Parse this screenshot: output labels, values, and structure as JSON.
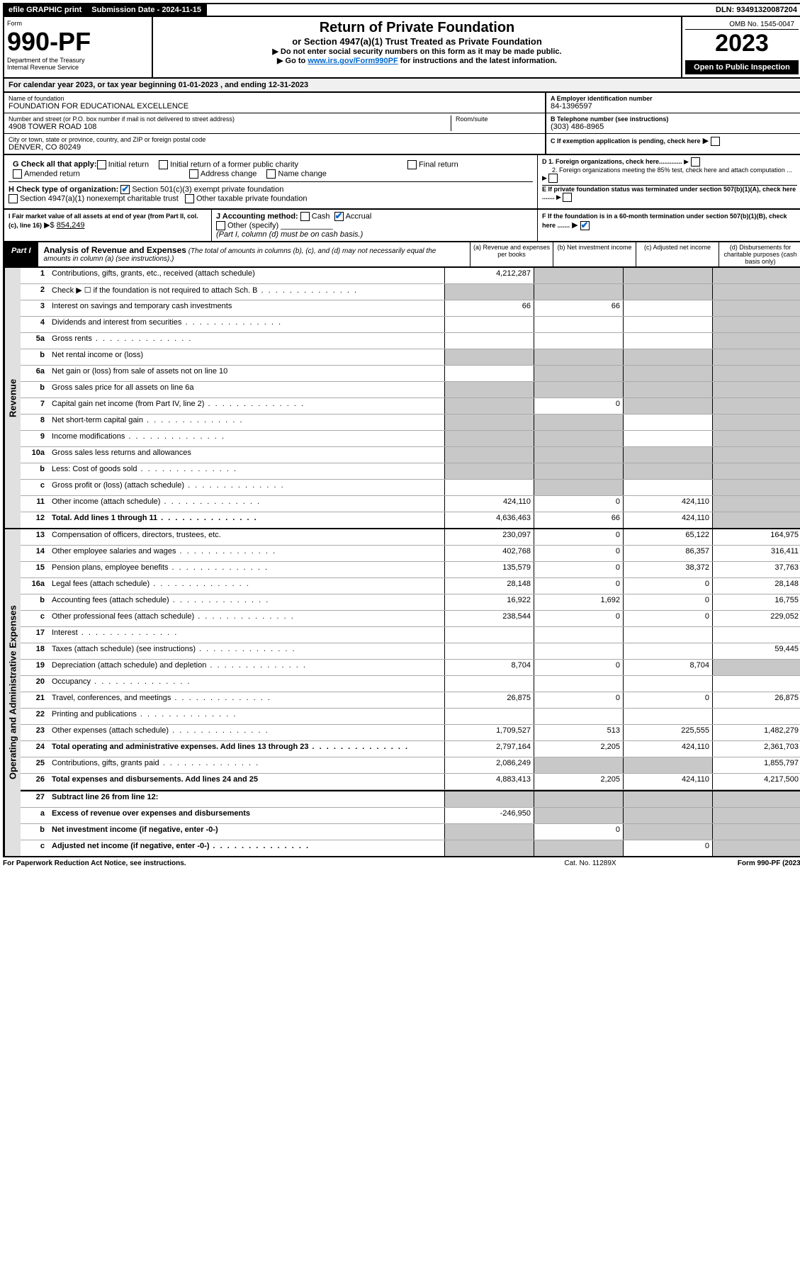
{
  "topbar": {
    "efile": "efile GRAPHIC print",
    "subdate_label": "Submission Date - 2024-11-15",
    "dln": "DLN: 93491320087204"
  },
  "omb": "OMB No. 1545-0047",
  "form_label": "Form",
  "form_no": "990-PF",
  "dept": "Department of the Treasury",
  "irs": "Internal Revenue Service",
  "title1": "Return of Private Foundation",
  "title2": "or Section 4947(a)(1) Trust Treated as Private Foundation",
  "instr1": "▶ Do not enter social security numbers on this form as it may be made public.",
  "instr2_pre": "▶ Go to ",
  "instr2_link": "www.irs.gov/Form990PF",
  "instr2_post": " for instructions and the latest information.",
  "year": "2023",
  "open": "Open to Public Inspection",
  "calendar": "For calendar year 2023, or tax year beginning 01-01-2023                          , and ending 12-31-2023",
  "name_label": "Name of foundation",
  "name": "FOUNDATION FOR EDUCATIONAL EXCELLENCE",
  "addr_label": "Number and street (or P.O. box number if mail is not delivered to street address)",
  "addr": "4908 TOWER ROAD 108",
  "room_label": "Room/suite",
  "city_label": "City or town, state or province, country, and ZIP or foreign postal code",
  "city": "DENVER, CO  80249",
  "A_label": "A Employer identification number",
  "A_val": "84-1396597",
  "B_label": "B Telephone number (see instructions)",
  "B_val": "(303) 486-8965",
  "C_label": "C If exemption application is pending, check here",
  "D1": "D 1. Foreign organizations, check here.............",
  "D2": "2. Foreign organizations meeting the 85% test, check here and attach computation ...",
  "E": "E  If private foundation status was terminated under section 507(b)(1)(A), check here .......",
  "F": "F  If the foundation is in a 60-month termination under section 507(b)(1)(B), check here .......",
  "G_label": "G Check all that apply:",
  "G_opts": [
    "Initial return",
    "Initial return of a former public charity",
    "Final return",
    "Amended return",
    "Address change",
    "Name change"
  ],
  "H_label": "H Check type of organization:",
  "H_501c3": "Section 501(c)(3) exempt private foundation",
  "H_4947": "Section 4947(a)(1) nonexempt charitable trust",
  "H_other": "Other taxable private foundation",
  "I_label": "I Fair market value of all assets at end of year (from Part II, col. (c), line 16)",
  "I_val": "854,249",
  "J_label": "J Accounting method:",
  "J_cash": "Cash",
  "J_accrual": "Accrual",
  "J_other": "Other (specify)",
  "J_note": "(Part I, column (d) must be on cash basis.)",
  "part1": "Part I",
  "part1_title": "Analysis of Revenue and Expenses",
  "part1_note": "(The total of amounts in columns (b), (c), and (d) may not necessarily equal the amounts in column (a) (see instructions).)",
  "col_a": "(a)   Revenue and expenses per books",
  "col_b": "(b)   Net investment income",
  "col_c": "(c)   Adjusted net income",
  "col_d": "(d)   Disbursements for charitable purposes (cash basis only)",
  "sidebar_rev": "Revenue",
  "sidebar_exp": "Operating and Administrative Expenses",
  "rows_rev": [
    {
      "n": "1",
      "d": "Contributions, gifts, grants, etc., received (attach schedule)",
      "a": "4,212,287",
      "ag": false,
      "bg": true,
      "cg": true,
      "dg": true
    },
    {
      "n": "2",
      "d": "Check ▶ ☐ if the foundation is not required to attach Sch. B",
      "dots": true,
      "ag": true,
      "bg": true,
      "cg": true,
      "dg": true
    },
    {
      "n": "3",
      "d": "Interest on savings and temporary cash investments",
      "a": "66",
      "b": "66",
      "dg": true
    },
    {
      "n": "4",
      "d": "Dividends and interest from securities",
      "dots": true,
      "dg": true
    },
    {
      "n": "5a",
      "d": "Gross rents",
      "dots": true,
      "dg": true
    },
    {
      "n": "b",
      "d": "Net rental income or (loss)",
      "box": true,
      "ag": true,
      "bg": true,
      "cg": true,
      "dg": true
    },
    {
      "n": "6a",
      "d": "Net gain or (loss) from sale of assets not on line 10",
      "bg": true,
      "cg": true,
      "dg": true
    },
    {
      "n": "b",
      "d": "Gross sales price for all assets on line 6a",
      "box": true,
      "ag": true,
      "bg": true,
      "cg": true,
      "dg": true
    },
    {
      "n": "7",
      "d": "Capital gain net income (from Part IV, line 2)",
      "dots": true,
      "ag": true,
      "b": "0",
      "cg": true,
      "dg": true
    },
    {
      "n": "8",
      "d": "Net short-term capital gain",
      "dots": true,
      "ag": true,
      "bg": true,
      "dg": true
    },
    {
      "n": "9",
      "d": "Income modifications",
      "dots": true,
      "ag": true,
      "bg": true,
      "dg": true
    },
    {
      "n": "10a",
      "d": "Gross sales less returns and allowances",
      "box": true,
      "ag": true,
      "bg": true,
      "cg": true,
      "dg": true
    },
    {
      "n": "b",
      "d": "Less: Cost of goods sold",
      "dots": true,
      "box": true,
      "ag": true,
      "bg": true,
      "cg": true,
      "dg": true
    },
    {
      "n": "c",
      "d": "Gross profit or (loss) (attach schedule)",
      "dots": true,
      "bg": true,
      "dg": true
    },
    {
      "n": "11",
      "d": "Other income (attach schedule)",
      "dots": true,
      "a": "424,110",
      "b": "0",
      "c": "424,110",
      "dg": true
    },
    {
      "n": "12",
      "d": "Total. Add lines 1 through 11",
      "dots": true,
      "bold": true,
      "a": "4,636,463",
      "b": "66",
      "c": "424,110",
      "dg": true
    }
  ],
  "rows_exp": [
    {
      "n": "13",
      "d": "Compensation of officers, directors, trustees, etc.",
      "a": "230,097",
      "b": "0",
      "c": "65,122",
      "dd": "164,975"
    },
    {
      "n": "14",
      "d": "Other employee salaries and wages",
      "dots": true,
      "a": "402,768",
      "b": "0",
      "c": "86,357",
      "dd": "316,411"
    },
    {
      "n": "15",
      "d": "Pension plans, employee benefits",
      "dots": true,
      "a": "135,579",
      "b": "0",
      "c": "38,372",
      "dd": "37,763"
    },
    {
      "n": "16a",
      "d": "Legal fees (attach schedule)",
      "dots": true,
      "a": "28,148",
      "b": "0",
      "c": "0",
      "dd": "28,148"
    },
    {
      "n": "b",
      "d": "Accounting fees (attach schedule)",
      "dots": true,
      "a": "16,922",
      "b": "1,692",
      "c": "0",
      "dd": "16,755"
    },
    {
      "n": "c",
      "d": "Other professional fees (attach schedule)",
      "dots": true,
      "a": "238,544",
      "b": "0",
      "c": "0",
      "dd": "229,052"
    },
    {
      "n": "17",
      "d": "Interest",
      "dots": true
    },
    {
      "n": "18",
      "d": "Taxes (attach schedule) (see instructions)",
      "dots": true,
      "dd": "59,445"
    },
    {
      "n": "19",
      "d": "Depreciation (attach schedule) and depletion",
      "dots": true,
      "a": "8,704",
      "b": "0",
      "c": "8,704",
      "dg": true
    },
    {
      "n": "20",
      "d": "Occupancy",
      "dots": true
    },
    {
      "n": "21",
      "d": "Travel, conferences, and meetings",
      "dots": true,
      "a": "26,875",
      "b": "0",
      "c": "0",
      "dd": "26,875"
    },
    {
      "n": "22",
      "d": "Printing and publications",
      "dots": true
    },
    {
      "n": "23",
      "d": "Other expenses (attach schedule)",
      "dots": true,
      "a": "1,709,527",
      "b": "513",
      "c": "225,555",
      "dd": "1,482,279"
    },
    {
      "n": "24",
      "d": "Total operating and administrative expenses. Add lines 13 through 23",
      "dots": true,
      "bold": true,
      "a": "2,797,164",
      "b": "2,205",
      "c": "424,110",
      "dd": "2,361,703"
    },
    {
      "n": "25",
      "d": "Contributions, gifts, grants paid",
      "dots": true,
      "a": "2,086,249",
      "bg": true,
      "cg": true,
      "dd": "1,855,797"
    },
    {
      "n": "26",
      "d": "Total expenses and disbursements. Add lines 24 and 25",
      "bold": true,
      "a": "4,883,413",
      "b": "2,205",
      "c": "424,110",
      "dd}": "4,217,500",
      "dd": "4,217,500"
    },
    {
      "n": "27",
      "d": "Subtract line 26 from line 12:",
      "bold": true,
      "ag": true,
      "bg": true,
      "cg": true,
      "dg": true,
      "divider": true
    },
    {
      "n": "a",
      "d": "Excess of revenue over expenses and disbursements",
      "bold": true,
      "a": "-246,950",
      "bg": true,
      "cg": true,
      "dg": true
    },
    {
      "n": "b",
      "d": "Net investment income (if negative, enter -0-)",
      "bold": true,
      "ag": true,
      "b": "0",
      "cg": true,
      "dg": true
    },
    {
      "n": "c",
      "d": "Adjusted net income (if negative, enter -0-)",
      "dots": true,
      "bold": true,
      "ag": true,
      "bg": true,
      "c": "0",
      "dg": true
    }
  ],
  "footer": {
    "left": "For Paperwork Reduction Act Notice, see instructions.",
    "mid": "Cat. No. 11289X",
    "right": "Form 990-PF (2023)"
  }
}
